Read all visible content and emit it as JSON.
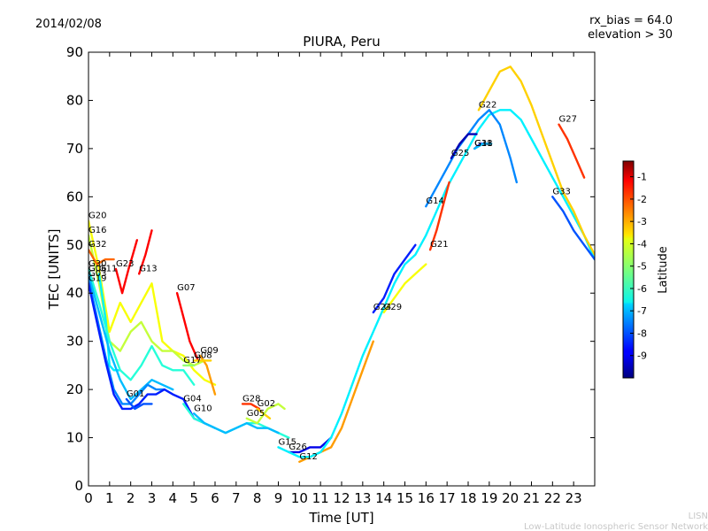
{
  "header": {
    "date": "2014/02/08",
    "rx_bias": "rx_bias = 64.0",
    "elevation": "elevation > 30"
  },
  "footer": {
    "credit_short": "LISN",
    "credit_long": "Low-Latitude Ionospheric Sensor Network"
  },
  "chart_data": {
    "type": "line",
    "title": "PIURA, Peru",
    "xlabel": "Time [UT]",
    "ylabel": "TEC [UNITS]",
    "xlim": [
      0,
      24
    ],
    "ylim": [
      0,
      90
    ],
    "xticks": [
      "0",
      "1",
      "2",
      "3",
      "4",
      "5",
      "6",
      "7",
      "8",
      "9",
      "10",
      "11",
      "12",
      "13",
      "14",
      "15",
      "16",
      "17",
      "18",
      "19",
      "20",
      "21",
      "22",
      "23"
    ],
    "yticks": [
      "0",
      "10",
      "20",
      "30",
      "40",
      "50",
      "60",
      "70",
      "80",
      "90"
    ],
    "colorbar": {
      "label": "Latitude",
      "range": [
        -10,
        -0.3
      ],
      "ticks": [
        "-1",
        "-2",
        "-3",
        "-4",
        "-5",
        "-6",
        "-7",
        "-8",
        "-9"
      ],
      "colormap": "jet"
    },
    "series": [
      {
        "name": "G20",
        "lat": -4.0,
        "x": [
          0.0,
          0.5,
          1.0,
          1.5,
          2.0,
          2.5,
          3.0,
          3.5,
          4.0,
          4.5,
          5.0,
          5.5,
          6.0
        ],
        "y": [
          55,
          45,
          32,
          38,
          34,
          38,
          42,
          30,
          28,
          27,
          24,
          22,
          21
        ]
      },
      {
        "name": "G16",
        "lat": -4.5,
        "x": [
          0.0,
          0.5,
          1.0,
          1.5,
          2.0,
          2.5,
          3.0,
          3.5,
          4.0,
          4.5,
          5.0,
          5.5
        ],
        "y": [
          52,
          42,
          30,
          28,
          32,
          34,
          30,
          28,
          28,
          26,
          25,
          26
        ]
      },
      {
        "name": "G32",
        "lat": -2.5,
        "x": [
          0.0,
          0.4,
          0.8,
          1.2
        ],
        "y": [
          49,
          46,
          47,
          47
        ]
      },
      {
        "name": "G23",
        "lat": -1.5,
        "x": [
          1.3,
          1.6,
          1.9,
          2.1,
          2.3
        ],
        "y": [
          45,
          40,
          45,
          48,
          51
        ]
      },
      {
        "name": "G13",
        "lat": -1.5,
        "x": [
          2.4,
          2.7,
          3.0
        ],
        "y": [
          44,
          48,
          53
        ]
      },
      {
        "name": "G07",
        "lat": -1.5,
        "x": [
          4.2,
          4.5,
          4.8,
          5.2
        ],
        "y": [
          40,
          35,
          30,
          26
        ]
      },
      {
        "name": "G09",
        "lat": -3.0,
        "x": [
          5.3,
          5.6,
          5.8,
          6.0
        ],
        "y": [
          27,
          25,
          22,
          19
        ]
      },
      {
        "name": "G08",
        "lat": -3.5,
        "x": [
          5.0,
          5.4,
          5.8
        ],
        "y": [
          26,
          26,
          26
        ]
      },
      {
        "name": "G17",
        "lat": -5.0,
        "x": [
          4.5,
          4.8,
          5.0
        ],
        "y": [
          25,
          25,
          25
        ]
      },
      {
        "name": "G11",
        "lat": -6.5,
        "x": [
          0.5,
          0.8,
          1.0,
          1.2,
          1.5
        ],
        "y": [
          44,
          35,
          25,
          24,
          24
        ]
      },
      {
        "name": "G30",
        "lat": -6.0,
        "x": [
          0.0,
          0.5,
          1.0,
          1.5,
          2.0,
          2.5,
          3.0,
          3.5,
          4.0,
          4.5,
          5.0
        ],
        "y": [
          45,
          38,
          30,
          24,
          22,
          25,
          29,
          25,
          24,
          24,
          21
        ]
      },
      {
        "name": "G06",
        "lat": -7.0,
        "x": [
          0.0,
          0.5,
          1.0,
          1.5,
          2.0,
          2.5,
          3.0,
          3.5,
          4.0
        ],
        "y": [
          44,
          36,
          28,
          22,
          18,
          20,
          22,
          21,
          20
        ]
      },
      {
        "name": "G03",
        "lat": -7.5,
        "x": [
          0.0,
          0.4,
          0.8,
          1.2,
          1.6,
          2.0,
          2.4,
          2.8,
          3.2,
          3.6
        ],
        "y": [
          43,
          35,
          27,
          20,
          17,
          17,
          19,
          21,
          20,
          20
        ]
      },
      {
        "name": "G19",
        "lat": -8.5,
        "x": [
          0.0,
          0.4,
          0.8,
          1.2,
          1.6,
          2.0,
          2.4,
          2.8,
          3.2,
          3.6,
          4.0,
          4.5,
          5.0,
          5.5,
          6.0
        ],
        "y": [
          42,
          34,
          26,
          19,
          16,
          16,
          17,
          19,
          19,
          20,
          19,
          18,
          14,
          13,
          12
        ]
      },
      {
        "name": "G01",
        "lat": -8.0,
        "x": [
          1.8,
          2.2,
          2.6,
          3.0
        ],
        "y": [
          18,
          16,
          17,
          17
        ]
      },
      {
        "name": "G04",
        "lat": -6.0,
        "x": [
          4.5,
          5.0,
          5.5,
          6.0,
          6.5,
          7.0,
          7.5,
          8.0,
          8.5,
          9.0,
          9.5
        ],
        "y": [
          17,
          14,
          13,
          12,
          11,
          12,
          13,
          13,
          12,
          11,
          10
        ]
      },
      {
        "name": "G10",
        "lat": -7.0,
        "x": [
          5.0,
          5.5,
          6.0,
          6.5,
          7.0,
          7.5,
          8.0,
          8.5,
          9.0
        ],
        "y": [
          15,
          13,
          12,
          11,
          12,
          13,
          12,
          12,
          11
        ]
      },
      {
        "name": "G28",
        "lat": -2.0,
        "x": [
          7.3,
          7.7,
          8.1
        ],
        "y": [
          17,
          17,
          16
        ]
      },
      {
        "name": "G02",
        "lat": -3.5,
        "x": [
          8.0,
          8.3,
          8.6
        ],
        "y": [
          16,
          15,
          14
        ]
      },
      {
        "name": "G05",
        "lat": -4.5,
        "x": [
          7.5,
          8.0,
          8.5,
          9.0,
          9.3
        ],
        "y": [
          14,
          13,
          16,
          17,
          16
        ]
      },
      {
        "name": "G26",
        "lat": -9.0,
        "x": [
          9.5,
          10.0,
          10.5,
          11.0,
          11.5
        ],
        "y": [
          7,
          7,
          8,
          8,
          10
        ]
      },
      {
        "name": "G12",
        "lat": -3.0,
        "x": [
          10.0,
          10.5,
          11.0,
          11.5,
          12.0,
          12.5,
          13.0,
          13.5
        ],
        "y": [
          5,
          6,
          7,
          8,
          12,
          18,
          24,
          30
        ]
      },
      {
        "name": "G15",
        "lat": -6.5,
        "x": [
          9.0,
          9.5,
          10.0,
          10.5,
          11.0,
          11.5,
          12.0,
          12.5,
          13.0,
          13.5,
          14.0,
          14.5,
          15.0,
          15.5,
          16.0,
          16.5,
          17.0,
          17.5,
          18.0,
          18.5,
          19.0,
          19.5,
          20.0,
          20.5,
          21.0,
          21.5,
          22.0,
          22.5,
          23.0,
          23.5,
          24.0
        ],
        "y": [
          8,
          7,
          6,
          6,
          7,
          10,
          15,
          21,
          27,
          32,
          37,
          42,
          46,
          48,
          52,
          57,
          62,
          66,
          70,
          74,
          77,
          78,
          78,
          76,
          72,
          68,
          64,
          60,
          56,
          52,
          47
        ]
      },
      {
        "name": "G24",
        "lat": -8.5,
        "x": [
          13.5,
          14.0,
          14.5,
          15.0,
          15.5
        ],
        "y": [
          36,
          39,
          44,
          47,
          50
        ]
      },
      {
        "name": "G29",
        "lat": -4.0,
        "x": [
          14.0,
          14.5,
          15.0,
          15.5,
          16.0
        ],
        "y": [
          36,
          39,
          42,
          44,
          46
        ]
      },
      {
        "name": "G14",
        "lat": -7.5,
        "x": [
          16.0,
          16.5,
          17.0,
          17.5,
          18.0,
          18.5,
          19.0,
          19.5,
          20.0,
          20.3
        ],
        "y": [
          58,
          62,
          66,
          70,
          73,
          76,
          78,
          75,
          68,
          63
        ]
      },
      {
        "name": "G21",
        "lat": -2.0,
        "x": [
          16.2,
          16.5,
          16.8,
          17.1
        ],
        "y": [
          49,
          53,
          58,
          63
        ]
      },
      {
        "name": "G25",
        "lat": -9.5,
        "x": [
          17.2,
          17.6,
          18.0,
          18.4
        ],
        "y": [
          68,
          71,
          73,
          73
        ]
      },
      {
        "name": "G31",
        "lat": -9.0,
        "x": [
          18.3,
          18.6,
          18.9
        ],
        "y": [
          70,
          71,
          71
        ]
      },
      {
        "name": "G18",
        "lat": -7.0,
        "x": [
          18.3,
          18.7,
          19.1
        ],
        "y": [
          70,
          71,
          71
        ]
      },
      {
        "name": "G22",
        "lat": -3.5,
        "x": [
          18.5,
          19.0,
          19.5,
          20.0,
          20.5,
          21.0,
          21.5,
          22.0,
          22.5,
          23.0,
          23.5,
          24.0
        ],
        "y": [
          78,
          82,
          86,
          87,
          84,
          79,
          73,
          67,
          61,
          57,
          52,
          48
        ]
      },
      {
        "name": "G27",
        "lat": -2.0,
        "x": [
          22.3,
          22.7,
          23.1,
          23.5
        ],
        "y": [
          75,
          72,
          68,
          64
        ]
      },
      {
        "name": "G33",
        "lat": -8.0,
        "x": [
          22.0,
          22.5,
          23.0,
          23.5,
          24.0
        ],
        "y": [
          60,
          57,
          53,
          50,
          47
        ]
      }
    ]
  }
}
